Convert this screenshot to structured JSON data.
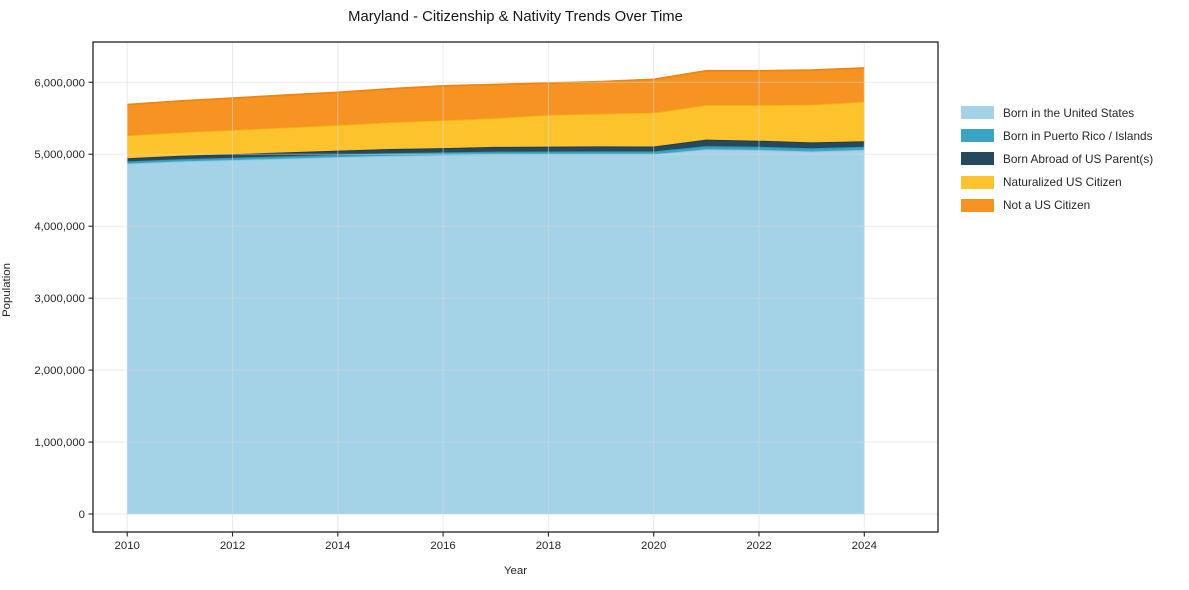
{
  "title": "Maryland - Citizenship & Nativity Trends Over Time",
  "chart_data": {
    "type": "area",
    "stacked": true,
    "title": "Maryland - Citizenship & Nativity Trends Over Time",
    "xlabel": "Year",
    "ylabel": "Population",
    "x": [
      2010,
      2011,
      2012,
      2013,
      2014,
      2015,
      2016,
      2017,
      2018,
      2019,
      2020,
      2021,
      2022,
      2023,
      2024
    ],
    "series": [
      {
        "name": "Born in the United States",
        "color": "#a4d2e6",
        "edge_color": "#8fc4dc",
        "values": [
          4870000,
          4900000,
          4920000,
          4940000,
          4960000,
          4980000,
          4990000,
          5000000,
          5000000,
          5000000,
          5000000,
          5070000,
          5060000,
          5040000,
          5060000
        ]
      },
      {
        "name": "Born in Puerto Rico / Islands",
        "color": "#3ba4c2",
        "edge_color": "#3295b2",
        "values": [
          30000,
          31000,
          32000,
          33000,
          34000,
          35000,
          36000,
          37000,
          38000,
          39000,
          40000,
          43000,
          43000,
          44000,
          45000
        ]
      },
      {
        "name": "Born Abroad of US Parent(s)",
        "color": "#254a5e",
        "edge_color": "#1d3c4d",
        "values": [
          45000,
          48000,
          50000,
          53000,
          56000,
          58000,
          60000,
          65000,
          68000,
          70000,
          68000,
          90000,
          85000,
          80000,
          75000
        ]
      },
      {
        "name": "Naturalized US Citizen",
        "color": "#fcc32d",
        "edge_color": "#f4b60e",
        "values": [
          315000,
          325000,
          335000,
          345000,
          355000,
          370000,
          385000,
          400000,
          440000,
          455000,
          470000,
          480000,
          495000,
          525000,
          550000
        ]
      },
      {
        "name": "Not a US Citizen",
        "color": "#f79322",
        "edge_color": "#ee850e",
        "values": [
          430000,
          436000,
          443000,
          449000,
          455000,
          467000,
          479000,
          468000,
          444000,
          446000,
          462000,
          477000,
          477000,
          481000,
          469000
        ]
      }
    ],
    "xticks": [
      2010,
      2012,
      2014,
      2016,
      2018,
      2020,
      2022,
      2024
    ],
    "xtick_labels": [
      "2010",
      "2012",
      "2014",
      "2016",
      "2018",
      "2020",
      "2022",
      "2024"
    ],
    "yticks": [
      0,
      1000000,
      2000000,
      3000000,
      4000000,
      5000000,
      6000000
    ],
    "ytick_labels": [
      "0",
      "1,000,000",
      "2,000,000",
      "3,000,000",
      "4,000,000",
      "5,000,000",
      "6,000,000"
    ],
    "xlim": [
      2009.35,
      2025.4
    ],
    "ylim": [
      -250000,
      6560000
    ],
    "grid": true,
    "legend_position": "right",
    "axes": {
      "spine_color": "#0f0f0f",
      "grid_color": "#d9d9d9",
      "tick_color": "#262626",
      "label_color": "#262626"
    }
  }
}
